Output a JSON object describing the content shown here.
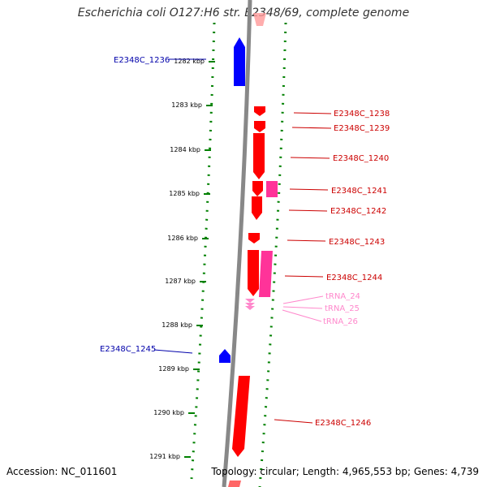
{
  "title": "Escherichia coli O127:H6 str. E2348/69, complete genome",
  "footer": {
    "accession": "Accession: NC_011601",
    "summary": "Topology: circular; Length: 4,965,553 bp; Genes: 4,739"
  },
  "colors": {
    "forward_gene": "#ff0000",
    "reverse_gene": "#0000ff",
    "rna": "#ff3399",
    "trna": "#ff88cc",
    "tick": "#008000",
    "backbone": "#888888"
  },
  "scale": {
    "ticks": [
      "1282 kbp",
      "1283 kbp",
      "1284 kbp",
      "1285 kbp",
      "1286 kbp",
      "1287 kbp",
      "1288 kbp",
      "1289 kbp",
      "1290 kbp",
      "1291 kbp"
    ]
  },
  "genes": [
    {
      "label": "E2348C_1236",
      "strand": "reverse",
      "kind": "gene"
    },
    {
      "label": "E2348C_1238",
      "strand": "forward",
      "kind": "gene"
    },
    {
      "label": "E2348C_1239",
      "strand": "forward",
      "kind": "gene"
    },
    {
      "label": "E2348C_1240",
      "strand": "forward",
      "kind": "gene"
    },
    {
      "label": "E2348C_1241",
      "strand": "forward",
      "kind": "gene"
    },
    {
      "label": "E2348C_1242",
      "strand": "forward",
      "kind": "gene"
    },
    {
      "label": "E2348C_1243",
      "strand": "forward",
      "kind": "gene"
    },
    {
      "label": "E2348C_1244",
      "strand": "forward",
      "kind": "gene"
    },
    {
      "label": "tRNA_24",
      "strand": "forward",
      "kind": "trna"
    },
    {
      "label": "tRNA_25",
      "strand": "forward",
      "kind": "trna"
    },
    {
      "label": "tRNA_26",
      "strand": "forward",
      "kind": "trna"
    },
    {
      "label": "E2348C_1245",
      "strand": "reverse",
      "kind": "gene"
    },
    {
      "label": "E2348C_1246",
      "strand": "forward",
      "kind": "gene"
    }
  ]
}
